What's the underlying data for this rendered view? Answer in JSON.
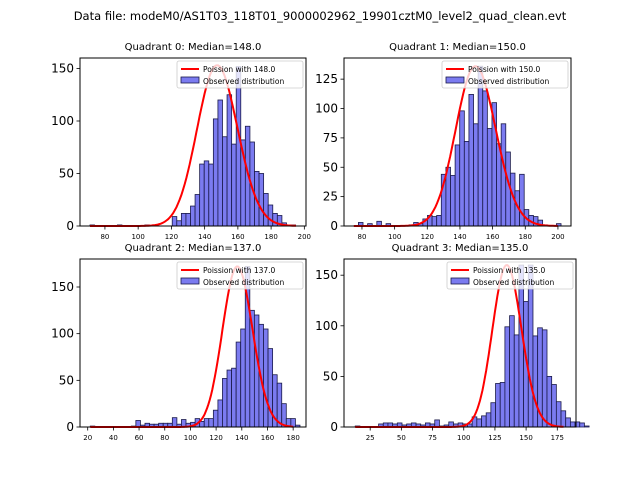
{
  "suptitle": "Data file: modeM0/AS1T03_118T01_9000002962_19901cztM0_level2_quad_clean.evt",
  "colors": {
    "bar_fill": "#7b7bf0",
    "bar_edge": "#1a1a4a",
    "poisson_line": "#ff0000"
  },
  "chart_data": [
    {
      "type": "bar",
      "title": "Quadrant 0: Median=148.0",
      "legend": [
        "Poission with 148.0",
        "Observed distribution"
      ],
      "legend_position": "top-right",
      "median": 148.0,
      "xlim": [
        65,
        201
      ],
      "ylim": [
        0,
        160
      ],
      "xticks": [
        80,
        100,
        120,
        140,
        160,
        180,
        200
      ],
      "yticks": [
        0,
        50,
        100,
        150
      ],
      "bins_start": 71,
      "bin_width": 2.75,
      "values": [
        1,
        0,
        0,
        0,
        0,
        0,
        1,
        0,
        0,
        0,
        0,
        0,
        1,
        0,
        0,
        0,
        0,
        0,
        9,
        5,
        12,
        12,
        19,
        30,
        59,
        62,
        59,
        102,
        120,
        85,
        125,
        78,
        152,
        82,
        95,
        80,
        52,
        50,
        31,
        20,
        12,
        10,
        3,
        1,
        1
      ],
      "poisson_peak": 153,
      "poisson_range": [
        71,
        195
      ]
    },
    {
      "type": "bar",
      "title": "Quadrant 1: Median=150.0",
      "legend": [
        "Poission with 150.0",
        "Observed distribution"
      ],
      "legend_position": "top-right",
      "median": 150.0,
      "xlim": [
        69,
        208
      ],
      "ylim": [
        0,
        143
      ],
      "xticks": [
        80,
        100,
        120,
        140,
        160,
        180,
        200
      ],
      "yticks": [
        0,
        25,
        50,
        75,
        100,
        125
      ],
      "bins_start": 75,
      "bin_width": 2.82,
      "values": [
        0,
        3,
        0,
        2,
        0,
        4,
        0,
        2,
        0,
        0,
        0,
        0,
        1,
        3,
        2,
        6,
        9,
        8,
        9,
        44,
        50,
        43,
        69,
        98,
        72,
        112,
        87,
        136,
        115,
        83,
        105,
        70,
        87,
        63,
        45,
        30,
        44,
        14,
        9,
        8,
        5,
        1,
        0,
        0,
        2
      ],
      "poisson_peak": 136,
      "poisson_range": [
        75,
        200
      ]
    },
    {
      "type": "bar",
      "title": "Quadrant 2: Median=137.0",
      "legend": [
        "Poission with 137.0",
        "Observed distribution"
      ],
      "legend_position": "top-right",
      "median": 137.0,
      "xlim": [
        14,
        190
      ],
      "ylim": [
        0,
        180
      ],
      "xticks": [
        20,
        40,
        60,
        80,
        100,
        120,
        140,
        160,
        180
      ],
      "yticks": [
        0,
        50,
        100,
        150
      ],
      "bins_start": 22,
      "bin_width": 3.55,
      "values": [
        1,
        0,
        0,
        0,
        0,
        0,
        0,
        0,
        0,
        1,
        7,
        2,
        4,
        3,
        3,
        4,
        4,
        4,
        10,
        3,
        8,
        4,
        5,
        9,
        6,
        9,
        9,
        18,
        29,
        52,
        61,
        63,
        91,
        105,
        172,
        125,
        120,
        110,
        105,
        84,
        56,
        47,
        25,
        9,
        9,
        2
      ],
      "poisson_peak": 172,
      "poisson_range": [
        22,
        180
      ]
    },
    {
      "type": "bar",
      "title": "Quadrant 3: Median=135.0",
      "legend": [
        "Poission with 135.0",
        "Observed distribution"
      ],
      "legend_position": "top-right",
      "median": 135.0,
      "xlim": [
        4,
        190
      ],
      "ylim": [
        0,
        166
      ],
      "xticks": [
        25,
        50,
        75,
        100,
        125,
        150,
        175
      ],
      "yticks": [
        0,
        50,
        100,
        150
      ],
      "bins_start": 13,
      "bin_width": 3.75,
      "values": [
        1,
        0,
        0,
        0,
        0,
        3,
        4,
        4,
        3,
        4,
        2,
        3,
        4,
        3,
        2,
        4,
        3,
        7,
        1,
        2,
        5,
        3,
        4,
        3,
        3,
        10,
        8,
        11,
        14,
        24,
        43,
        44,
        99,
        110,
        91,
        160,
        124,
        160,
        90,
        98,
        96,
        50,
        42,
        25,
        16,
        9,
        5,
        5,
        4,
        1
      ],
      "poisson_peak": 160,
      "poisson_range": [
        13,
        180
      ]
    }
  ]
}
